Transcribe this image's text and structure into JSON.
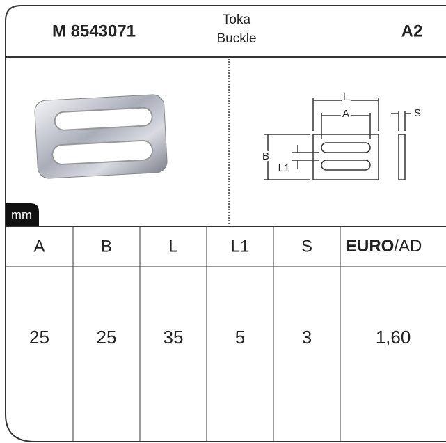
{
  "header": {
    "code": "M 8543071",
    "name_lines": [
      "Toka",
      "Buckle"
    ],
    "variant": "A2"
  },
  "unit_label": "mm",
  "diagram": {
    "labels": [
      "L",
      "A",
      "S",
      "B",
      "L1"
    ]
  },
  "table": {
    "columns": [
      "A",
      "B",
      "L",
      "L1",
      "S",
      {
        "bold": "EURO",
        "rest": "/AD"
      }
    ],
    "rows": [
      [
        "25",
        "25",
        "35",
        "5",
        "3",
        "1,60"
      ]
    ]
  }
}
